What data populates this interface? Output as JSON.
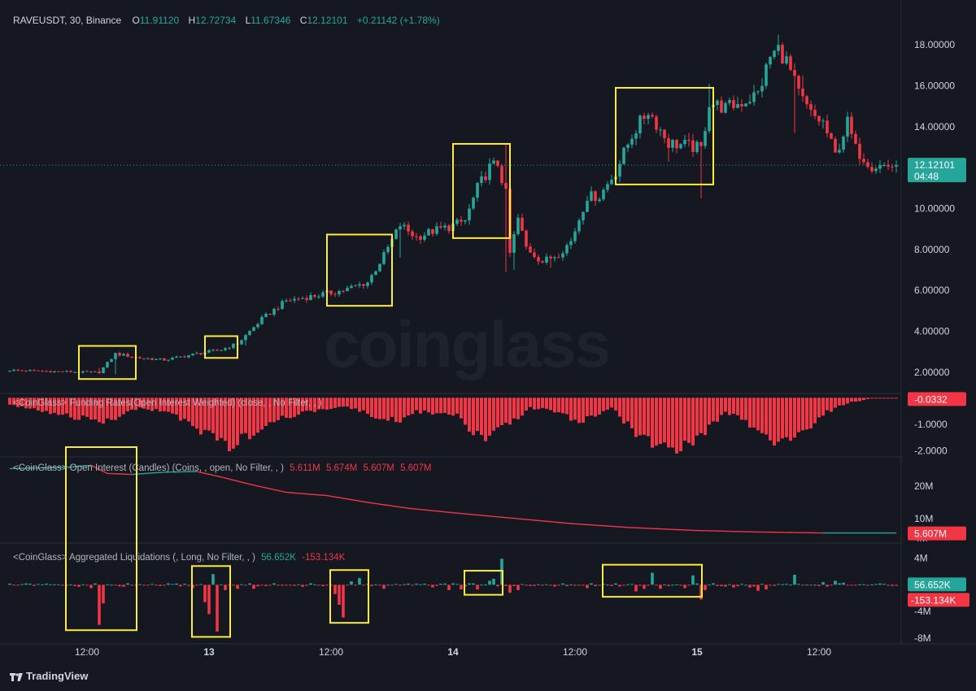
{
  "header": {
    "symbol": "RAVEUSDT, 30, Binance",
    "o_label": "O",
    "o_value": "11.91120",
    "h_label": "H",
    "h_value": "12.72734",
    "l_label": "L",
    "l_value": "11.67346",
    "c_label": "C",
    "c_value": "12.12101",
    "change": "+0.21142 (+1.78%)"
  },
  "watermark": "coinglass",
  "branding": "TradingView",
  "colors": {
    "up": "#26a69a",
    "down": "#f23645",
    "highlight": "#ffeb3b",
    "axis_text": "#d1d4dc"
  },
  "chart_data": [
    {
      "type": "candlestick",
      "name": "price",
      "ylim": [
        1.2,
        19.0
      ],
      "y_ticks": [
        "2.00000",
        "4.00000",
        "6.00000",
        "8.00000",
        "10.00000",
        "12.00000",
        "14.00000",
        "16.00000",
        "18.00000"
      ],
      "current_price": "12.12101",
      "countdown": "04:48",
      "x_ticks": [
        "12:00",
        "13",
        "12:00",
        "14",
        "12:00",
        "15",
        "12:00"
      ],
      "anchors": [
        [
          0,
          2.1
        ],
        [
          18,
          2.0
        ],
        [
          22,
          2.0
        ],
        [
          26,
          2.9
        ],
        [
          32,
          2.7
        ],
        [
          38,
          2.6
        ],
        [
          46,
          2.9
        ],
        [
          52,
          3.1
        ],
        [
          56,
          3.4
        ],
        [
          62,
          4.6
        ],
        [
          68,
          5.5
        ],
        [
          74,
          5.7
        ],
        [
          82,
          6.0
        ],
        [
          88,
          6.4
        ],
        [
          92,
          7.7
        ],
        [
          96,
          9.2
        ],
        [
          100,
          8.6
        ],
        [
          104,
          8.9
        ],
        [
          108,
          9.1
        ],
        [
          112,
          9.4
        ],
        [
          115,
          11.0
        ],
        [
          118,
          12.0
        ],
        [
          120,
          12.2
        ],
        [
          122,
          10.7
        ],
        [
          123,
          7.8
        ],
        [
          125,
          9.5
        ],
        [
          127,
          8.1
        ],
        [
          131,
          7.4
        ],
        [
          135,
          7.8
        ],
        [
          138,
          8.4
        ],
        [
          142,
          10.6
        ],
        [
          145,
          10.6
        ],
        [
          149,
          11.8
        ],
        [
          153,
          13.6
        ],
        [
          157,
          14.8
        ],
        [
          162,
          13.2
        ],
        [
          166,
          13.1
        ],
        [
          170,
          12.9
        ],
        [
          172,
          15.2
        ],
        [
          176,
          14.9
        ],
        [
          180,
          15.2
        ],
        [
          184,
          15.6
        ],
        [
          187,
          17.4
        ],
        [
          189,
          17.8
        ],
        [
          191,
          17.2
        ],
        [
          194,
          15.6
        ],
        [
          197,
          14.6
        ],
        [
          200,
          14.2
        ],
        [
          203,
          12.6
        ],
        [
          206,
          14.2
        ],
        [
          208,
          12.9
        ],
        [
          212,
          12.1
        ]
      ],
      "spikes": [
        [
          22,
          2.2
        ],
        [
          26,
          1.9
        ],
        [
          58,
          3.3
        ],
        [
          96,
          7.6
        ],
        [
          122,
          13.2
        ],
        [
          122,
          6.9
        ],
        [
          124,
          7.0
        ],
        [
          133,
          7.1
        ],
        [
          162,
          12.3
        ],
        [
          170,
          10.5
        ],
        [
          172,
          16.1
        ],
        [
          189,
          18.5
        ],
        [
          193,
          13.7
        ],
        [
          195,
          16.5
        ]
      ],
      "highlight_boxes": [
        [
          18,
          30
        ],
        [
          49,
          55
        ],
        [
          79,
          93
        ],
        [
          110,
          122
        ],
        [
          150,
          172
        ]
      ]
    },
    {
      "type": "histogram",
      "name": "funding-rates",
      "title": "<CoinGlass> Funding Rates(Open Interest Weighted) (close, , No Filter, , )",
      "ylim": [
        -2.1,
        0.1
      ],
      "y_ticks": [
        "-1.0000",
        "-2.0000"
      ],
      "current_value": "-0.0332",
      "anchors": [
        [
          0,
          -0.25
        ],
        [
          10,
          -0.6
        ],
        [
          24,
          -0.9
        ],
        [
          32,
          -0.4
        ],
        [
          40,
          -0.6
        ],
        [
          48,
          -1.3
        ],
        [
          54,
          -1.85
        ],
        [
          60,
          -1.3
        ],
        [
          66,
          -0.8
        ],
        [
          74,
          -0.5
        ],
        [
          82,
          -0.3
        ],
        [
          90,
          -0.7
        ],
        [
          96,
          -0.9
        ],
        [
          100,
          -0.5
        ],
        [
          110,
          -0.7
        ],
        [
          116,
          -1.6
        ],
        [
          122,
          -1.1
        ],
        [
          128,
          -0.4
        ],
        [
          134,
          -0.5
        ],
        [
          140,
          -0.9
        ],
        [
          148,
          -0.4
        ],
        [
          156,
          -1.6
        ],
        [
          164,
          -1.9
        ],
        [
          170,
          -1.4
        ],
        [
          176,
          -0.5
        ],
        [
          184,
          -1.2
        ],
        [
          190,
          -1.8
        ],
        [
          196,
          -1.2
        ],
        [
          200,
          -0.6
        ],
        [
          206,
          -0.2
        ],
        [
          212,
          -0.03
        ]
      ]
    },
    {
      "type": "line",
      "name": "open-interest",
      "title": "<CoinGlass> Open Interest (Candles) (Coins, , open, No Filter, , )",
      "values_label": [
        "5.611M",
        "5.674M",
        "5.607M",
        "5.607M"
      ],
      "ylim": [
        3.5,
        26.5
      ],
      "y_ticks": [
        "20M",
        "10M",
        "4M"
      ],
      "current_value": "5.607M",
      "anchors": [
        [
          0,
          25.4
        ],
        [
          14,
          25.8
        ],
        [
          20,
          26.4
        ],
        [
          24,
          23.9
        ],
        [
          30,
          23.6
        ],
        [
          38,
          24.3
        ],
        [
          46,
          24.5
        ],
        [
          52,
          22.8
        ],
        [
          60,
          20.3
        ],
        [
          68,
          18.1
        ],
        [
          78,
          17.1
        ],
        [
          88,
          15.0
        ],
        [
          98,
          13.2
        ],
        [
          110,
          11.7
        ],
        [
          124,
          10.1
        ],
        [
          138,
          8.5
        ],
        [
          152,
          7.3
        ],
        [
          168,
          6.4
        ],
        [
          184,
          5.9
        ],
        [
          200,
          5.6
        ],
        [
          212,
          5.6
        ]
      ]
    },
    {
      "type": "histogram",
      "name": "aggregated-liquidations",
      "title": "<CoinGlass> Aggregated Liquidations (, Long, No Filter, , )",
      "long_value": "56.652K",
      "short_value": "-153.134K",
      "ylim": [
        -8.6,
        6.0
      ],
      "y_ticks": [
        "4M",
        "-4M",
        "-8M"
      ],
      "bars": [
        [
          17,
          -0.3
        ],
        [
          20,
          -0.5
        ],
        [
          22,
          -6.0
        ],
        [
          23,
          -2.8
        ],
        [
          28,
          -0.3
        ],
        [
          45,
          -0.5
        ],
        [
          48,
          -2.6
        ],
        [
          49,
          -4.4
        ],
        [
          50,
          1.6
        ],
        [
          51,
          -7.0
        ],
        [
          53,
          -0.8
        ],
        [
          56,
          -0.6
        ],
        [
          60,
          -0.6
        ],
        [
          72,
          -0.3
        ],
        [
          80,
          -1.4
        ],
        [
          81,
          -3.0
        ],
        [
          82,
          -4.9
        ],
        [
          84,
          0.5
        ],
        [
          86,
          1.0
        ],
        [
          92,
          -0.6
        ],
        [
          104,
          -0.4
        ],
        [
          108,
          -0.8
        ],
        [
          111,
          -0.7
        ],
        [
          115,
          -0.7
        ],
        [
          118,
          0.6
        ],
        [
          119,
          0.9
        ],
        [
          121,
          3.9
        ],
        [
          123,
          -1.2
        ],
        [
          125,
          -0.8
        ],
        [
          137,
          -0.2
        ],
        [
          142,
          -0.5
        ],
        [
          154,
          -1.0
        ],
        [
          156,
          -0.6
        ],
        [
          158,
          1.8
        ],
        [
          160,
          -0.6
        ],
        [
          166,
          -0.5
        ],
        [
          168,
          1.4
        ],
        [
          170,
          -2.2
        ],
        [
          171,
          -0.8
        ],
        [
          178,
          -0.4
        ],
        [
          182,
          -0.4
        ],
        [
          184,
          -0.9
        ],
        [
          186,
          -0.7
        ],
        [
          193,
          1.5
        ],
        [
          200,
          0.4
        ],
        [
          203,
          0.6
        ],
        [
          205,
          0.3
        ]
      ],
      "highlight_boxes": [
        [
          15,
          30
        ],
        [
          46,
          53
        ],
        [
          80,
          87
        ],
        [
          113,
          120
        ],
        [
          147,
          169
        ]
      ]
    }
  ]
}
